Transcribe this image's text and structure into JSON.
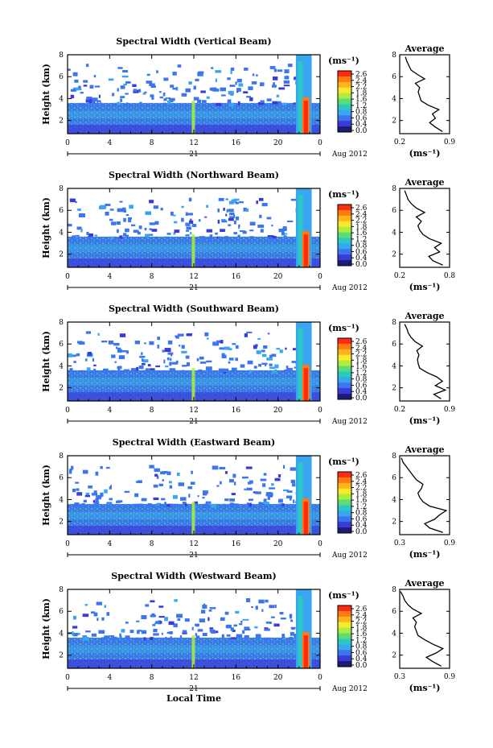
{
  "figure": {
    "xlabel": "Local Time",
    "date_label": "21",
    "month_label": "Aug 2012",
    "height_label": "Height (km)",
    "unit_label": "(ms⁻¹)",
    "average_title": "Average"
  },
  "colorbar": {
    "ticks": [
      "2.6",
      "2.4",
      "2.2",
      "1.8",
      "1.6",
      "1.2",
      "0.8",
      "0.6",
      "0.4",
      "0.0"
    ],
    "colors": [
      "#ff2a12",
      "#ff7a10",
      "#ffb41c",
      "#f6ea2c",
      "#b0ec40",
      "#5cdc74",
      "#2ec8c4",
      "#38a6f0",
      "#3c76ee",
      "#3a3ad8",
      "#1c1c74"
    ]
  },
  "chart_data": [
    {
      "type": "heatmap",
      "title": "Spectral Width (Vertical Beam)",
      "xlabel": "",
      "ylabel": "Height (km)",
      "xticks": [
        "0",
        "4",
        "8",
        "12",
        "16",
        "20",
        "0"
      ],
      "yticks": [
        "8",
        "6",
        "4",
        "2"
      ],
      "xlim": [
        0,
        24
      ],
      "ylim": [
        0.8,
        8
      ],
      "colorbar_label": "(ms⁻¹)",
      "average": {
        "title": "Average",
        "xlabel": "(ms⁻¹)",
        "xticks": [
          "0.2",
          "0.9"
        ],
        "yticks": [
          "8",
          "6",
          "4",
          "2"
        ],
        "xlim": [
          0.2,
          0.9
        ],
        "ylim": [
          0.8,
          8
        ],
        "height": [
          1.0,
          1.4,
          1.8,
          2.2,
          2.6,
          3.0,
          3.4,
          3.8,
          4.2,
          4.6,
          5.0,
          5.4,
          5.8,
          6.2,
          6.6,
          7.0,
          7.4,
          7.8
        ],
        "value": [
          0.8,
          0.7,
          0.62,
          0.7,
          0.66,
          0.75,
          0.6,
          0.5,
          0.48,
          0.46,
          0.48,
          0.42,
          0.55,
          0.45,
          0.36,
          0.33,
          0.3,
          0.28
        ]
      }
    },
    {
      "type": "heatmap",
      "title": "Spectral Width (Northward Beam)",
      "xlabel": "",
      "ylabel": "Height (km)",
      "xticks": [
        "0",
        "4",
        "8",
        "12",
        "16",
        "20",
        "0"
      ],
      "yticks": [
        "8",
        "6",
        "4",
        "2"
      ],
      "xlim": [
        0,
        24
      ],
      "ylim": [
        0.8,
        8
      ],
      "colorbar_label": "(ms⁻¹)",
      "average": {
        "title": "Average",
        "xlabel": "(ms⁻¹)",
        "xticks": [
          "0.2",
          "0.8"
        ],
        "yticks": [
          "8",
          "6",
          "4",
          "2"
        ],
        "xlim": [
          0.2,
          0.8
        ],
        "ylim": [
          0.8,
          8
        ],
        "height": [
          1.0,
          1.4,
          1.8,
          2.2,
          2.6,
          3.0,
          3.4,
          3.8,
          4.2,
          4.6,
          5.0,
          5.4,
          5.8,
          6.2,
          6.6,
          7.0,
          7.4,
          7.8
        ],
        "value": [
          0.72,
          0.6,
          0.55,
          0.68,
          0.62,
          0.7,
          0.56,
          0.48,
          0.44,
          0.42,
          0.46,
          0.4,
          0.5,
          0.4,
          0.34,
          0.3,
          0.28,
          0.26
        ]
      }
    },
    {
      "type": "heatmap",
      "title": "Spectral Width (Southward Beam)",
      "xlabel": "",
      "ylabel": "Height (km)",
      "xticks": [
        "0",
        "4",
        "8",
        "12",
        "16",
        "20",
        "0"
      ],
      "yticks": [
        "8",
        "6",
        "4",
        "2"
      ],
      "xlim": [
        0,
        24
      ],
      "ylim": [
        0.8,
        8
      ],
      "colorbar_label": "(ms⁻¹)",
      "average": {
        "title": "Average",
        "xlabel": "(ms⁻¹)",
        "xticks": [
          "0.2",
          "0.9"
        ],
        "yticks": [
          "8",
          "6",
          "4",
          "2"
        ],
        "xlim": [
          0.2,
          0.9
        ],
        "ylim": [
          0.8,
          8
        ],
        "height": [
          1.0,
          1.4,
          1.8,
          2.2,
          2.6,
          3.0,
          3.4,
          3.8,
          4.2,
          4.6,
          5.0,
          5.4,
          5.8,
          6.2,
          6.6,
          7.0,
          7.4,
          7.8
        ],
        "value": [
          0.78,
          0.68,
          0.84,
          0.7,
          0.8,
          0.72,
          0.58,
          0.48,
          0.46,
          0.45,
          0.47,
          0.44,
          0.52,
          0.42,
          0.36,
          0.32,
          0.3,
          0.27
        ]
      }
    },
    {
      "type": "heatmap",
      "title": "Spectral Width (Eastward Beam)",
      "xlabel": "",
      "ylabel": "Height (km)",
      "xticks": [
        "0",
        "4",
        "8",
        "12",
        "16",
        "20",
        "0"
      ],
      "yticks": [
        "8",
        "6",
        "4",
        "2"
      ],
      "xlim": [
        0,
        24
      ],
      "ylim": [
        0.8,
        8
      ],
      "colorbar_label": "(ms⁻¹)",
      "average": {
        "title": "Average",
        "xlabel": "(ms⁻¹)",
        "xticks": [
          "0.3",
          "0.9"
        ],
        "yticks": [
          "8",
          "6",
          "4",
          "2"
        ],
        "xlim": [
          0.3,
          0.9
        ],
        "ylim": [
          0.8,
          8
        ],
        "height": [
          1.0,
          1.4,
          1.8,
          2.2,
          2.6,
          3.0,
          3.4,
          3.8,
          4.2,
          4.6,
          5.0,
          5.4,
          5.8,
          6.2,
          6.6,
          7.0,
          7.4,
          7.8
        ],
        "value": [
          0.82,
          0.66,
          0.6,
          0.72,
          0.78,
          0.86,
          0.66,
          0.58,
          0.54,
          0.52,
          0.56,
          0.58,
          0.5,
          0.46,
          0.42,
          0.38,
          0.34,
          0.32
        ]
      }
    },
    {
      "type": "heatmap",
      "title": "Spectral Width (Westward Beam)",
      "xlabel": "Local Time",
      "ylabel": "Height (km)",
      "xticks": [
        "0",
        "4",
        "8",
        "12",
        "16",
        "20",
        "0"
      ],
      "yticks": [
        "8",
        "6",
        "4",
        "2"
      ],
      "xlim": [
        0,
        24
      ],
      "ylim": [
        0.8,
        8
      ],
      "colorbar_label": "(ms⁻¹)",
      "average": {
        "title": "Average",
        "xlabel": "(ms⁻¹)",
        "xticks": [
          "0.3",
          "0.9"
        ],
        "yticks": [
          "8",
          "6",
          "4",
          "2"
        ],
        "xlim": [
          0.3,
          0.9
        ],
        "ylim": [
          0.8,
          8
        ],
        "height": [
          1.0,
          1.4,
          1.8,
          2.2,
          2.6,
          3.0,
          3.4,
          3.8,
          4.2,
          4.6,
          5.0,
          5.4,
          5.8,
          6.2,
          6.6,
          7.0,
          7.4,
          7.8
        ],
        "value": [
          0.8,
          0.7,
          0.62,
          0.74,
          0.82,
          0.7,
          0.6,
          0.52,
          0.5,
          0.48,
          0.5,
          0.46,
          0.56,
          0.46,
          0.4,
          0.36,
          0.34,
          0.31
        ]
      }
    }
  ]
}
